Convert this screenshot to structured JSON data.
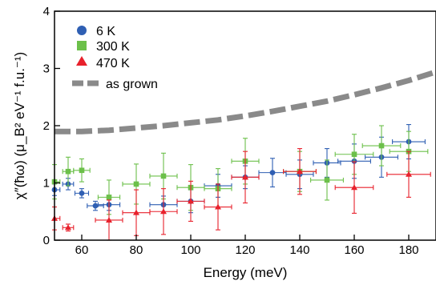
{
  "chart_data": {
    "type": "scatter",
    "title": "",
    "xlabel": "Energy (meV)",
    "ylabel": "χ″(ħω) (μ_B² eV⁻¹ f.u.⁻¹)",
    "xlim": [
      50,
      190
    ],
    "ylim": [
      0,
      4
    ],
    "xticks": [
      60,
      80,
      100,
      120,
      140,
      160,
      180
    ],
    "yticks": [
      0,
      1,
      2,
      3,
      4
    ],
    "grid": false,
    "legend_position": "top-left",
    "series": [
      {
        "name": "6 K",
        "marker": "circle",
        "color": "#2f5fb3",
        "x": [
          50,
          55,
          60,
          65,
          70,
          90,
          100,
          110,
          120,
          130,
          140,
          150,
          160,
          170,
          180
        ],
        "y": [
          0.88,
          0.98,
          0.82,
          0.6,
          0.62,
          0.62,
          0.68,
          0.95,
          1.1,
          1.18,
          1.15,
          1.35,
          1.38,
          1.45,
          1.72
        ],
        "yerr": [
          0.1,
          0.1,
          0.08,
          0.08,
          0.1,
          0.15,
          0.2,
          0.2,
          0.2,
          0.25,
          0.25,
          0.25,
          0.3,
          0.35,
          0.3
        ],
        "xerr": [
          2,
          2,
          2.5,
          3,
          4,
          5,
          5,
          5,
          5,
          5,
          5,
          5,
          6,
          6,
          6
        ]
      },
      {
        "name": "300 K",
        "marker": "square",
        "color": "#6cc04a",
        "x": [
          50,
          55,
          60,
          70,
          80,
          90,
          100,
          110,
          120,
          140,
          150,
          160,
          170,
          180
        ],
        "y": [
          1.02,
          1.2,
          1.22,
          0.75,
          0.98,
          1.12,
          0.92,
          0.9,
          1.38,
          1.2,
          1.05,
          1.5,
          1.65,
          1.55
        ],
        "yerr": [
          0.3,
          0.25,
          0.2,
          0.3,
          0.35,
          0.4,
          0.4,
          0.35,
          0.4,
          0.35,
          0.35,
          0.35,
          0.35,
          0.35
        ],
        "xerr": [
          2,
          2,
          3,
          4,
          5,
          5,
          5,
          5,
          5,
          6,
          6,
          7,
          7,
          7
        ]
      },
      {
        "name": "470 K",
        "marker": "triangle",
        "color": "#e8212c",
        "x": [
          50,
          55,
          70,
          80,
          90,
          100,
          110,
          120,
          140,
          160,
          180
        ],
        "y": [
          0.38,
          0.22,
          0.35,
          0.48,
          0.5,
          0.68,
          0.58,
          1.1,
          1.2,
          0.92,
          1.15
        ],
        "yerr": [
          0.2,
          0.06,
          0.35,
          0.4,
          0.4,
          0.35,
          0.4,
          0.45,
          0.4,
          0.45,
          0.4
        ],
        "xerr": [
          2,
          2,
          5,
          5,
          5,
          5,
          5,
          5,
          6,
          7,
          8
        ]
      },
      {
        "name": "as grown",
        "marker": "dashed-line",
        "color": "#8a8a8a",
        "x": [
          50,
          60,
          70,
          80,
          90,
          100,
          110,
          120,
          130,
          140,
          150,
          160,
          170,
          180,
          190
        ],
        "y": [
          1.9,
          1.9,
          1.92,
          1.96,
          2.0,
          2.05,
          2.1,
          2.17,
          2.25,
          2.34,
          2.43,
          2.54,
          2.66,
          2.79,
          2.94
        ]
      }
    ]
  }
}
